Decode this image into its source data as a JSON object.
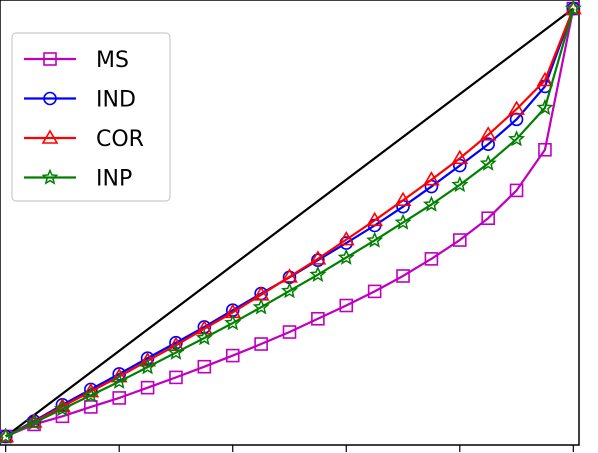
{
  "chart_data": {
    "type": "line",
    "title": "",
    "xlabel": "",
    "ylabel": "",
    "xlim": [
      -0.01,
      1.01
    ],
    "ylim": [
      -0.02,
      1.02
    ],
    "grid": false,
    "legend_placement": "top-left",
    "x": [
      0,
      0.05,
      0.1,
      0.15,
      0.2,
      0.25,
      0.3,
      0.35,
      0.4,
      0.45,
      0.5,
      0.55,
      0.6,
      0.65,
      0.7,
      0.75,
      0.8,
      0.85,
      0.9,
      0.95,
      1.0
    ],
    "reference_line": {
      "x": [
        0,
        1
      ],
      "y": [
        0,
        1
      ],
      "color": "#000000"
    },
    "series": [
      {
        "name": "MS",
        "color": "#bf00bf",
        "marker": "square",
        "values": [
          0.0,
          0.028,
          0.047,
          0.069,
          0.09,
          0.114,
          0.138,
          0.163,
          0.189,
          0.216,
          0.244,
          0.275,
          0.306,
          0.339,
          0.375,
          0.415,
          0.459,
          0.51,
          0.575,
          0.67,
          1.0
        ]
      },
      {
        "name": "IND",
        "color": "#0000ff",
        "marker": "circle",
        "values": [
          0.0,
          0.036,
          0.074,
          0.11,
          0.146,
          0.183,
          0.219,
          0.256,
          0.295,
          0.334,
          0.372,
          0.412,
          0.452,
          0.493,
          0.537,
          0.584,
          0.633,
          0.683,
          0.741,
          0.818,
          1.0
        ]
      },
      {
        "name": "COR",
        "color": "#ff0000",
        "marker": "triangle",
        "values": [
          0.0,
          0.034,
          0.07,
          0.105,
          0.14,
          0.177,
          0.213,
          0.252,
          0.29,
          0.331,
          0.373,
          0.415,
          0.46,
          0.505,
          0.552,
          0.6,
          0.65,
          0.705,
          0.765,
          0.832,
          1.0
        ]
      },
      {
        "name": "INP",
        "color": "#008000",
        "marker": "star",
        "values": [
          0.0,
          0.032,
          0.064,
          0.096,
          0.128,
          0.162,
          0.196,
          0.23,
          0.265,
          0.302,
          0.34,
          0.378,
          0.418,
          0.458,
          0.5,
          0.542,
          0.588,
          0.638,
          0.695,
          0.768,
          1.0
        ]
      }
    ]
  }
}
